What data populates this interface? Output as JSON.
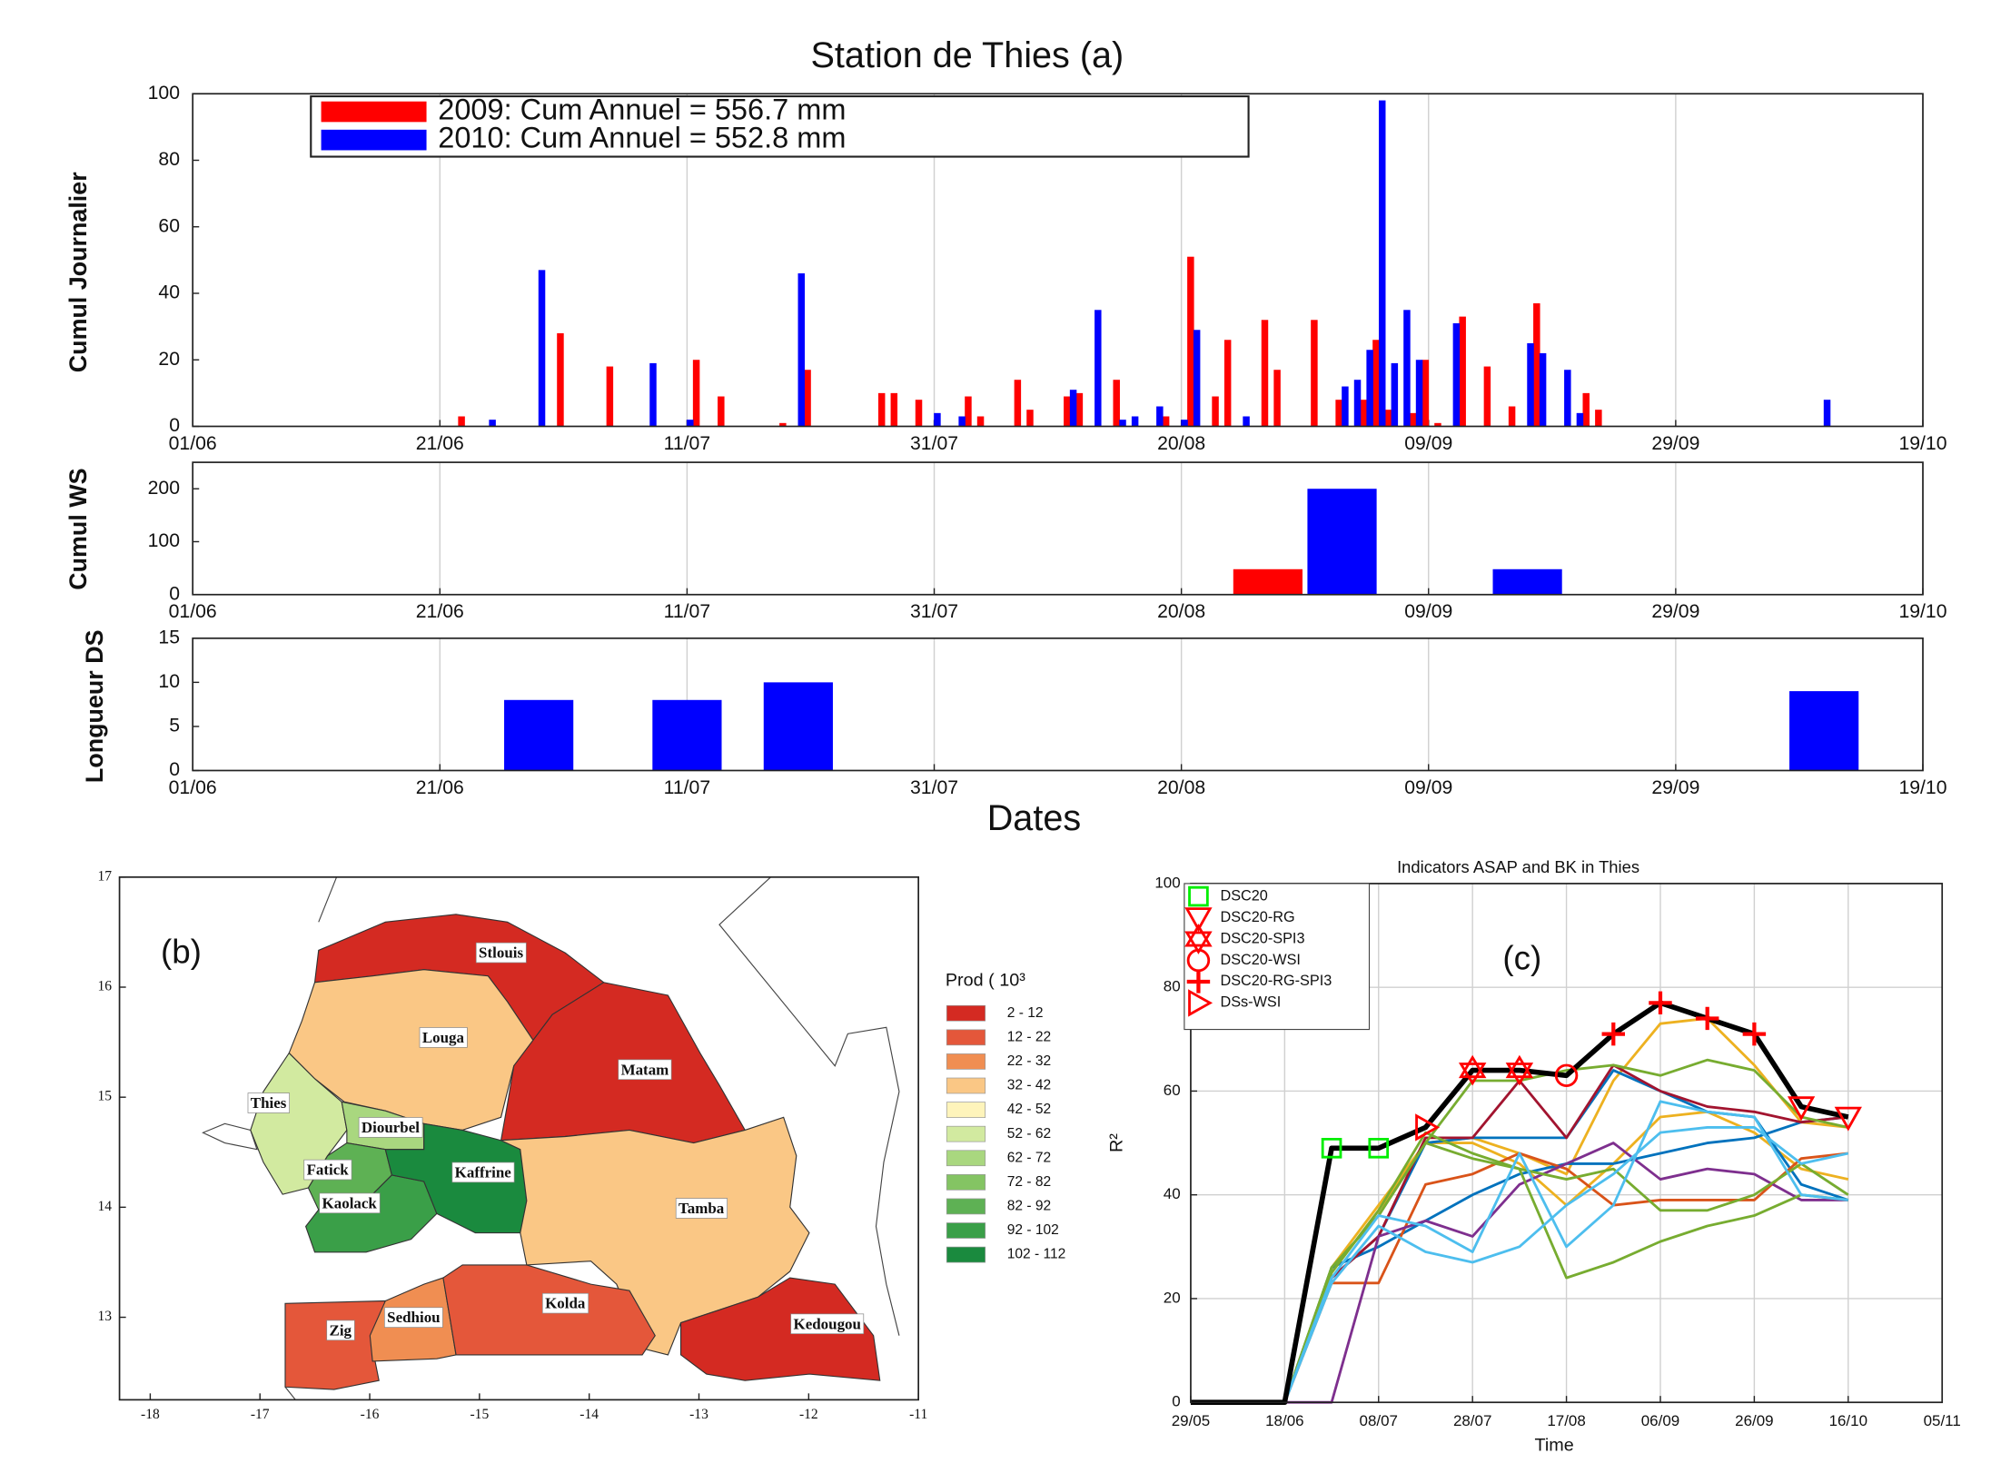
{
  "chart_data": [
    {
      "type": "bar",
      "title": "Station de Thies (a)",
      "ylabel": "Cumul Journalier",
      "xlim": [
        152,
        292
      ],
      "xticks": [
        {
          "value": 152,
          "label": "01/06"
        },
        {
          "value": 172,
          "label": "21/06"
        },
        {
          "value": 192,
          "label": "11/07"
        },
        {
          "value": 212,
          "label": "31/07"
        },
        {
          "value": 232,
          "label": "20/08"
        },
        {
          "value": 252,
          "label": "09/09"
        },
        {
          "value": 272,
          "label": "29/09"
        },
        {
          "value": 292,
          "label": "19/10"
        }
      ],
      "ylim": [
        0,
        100
      ],
      "yticks": [
        0,
        20,
        40,
        60,
        80,
        100
      ],
      "xgrid": true,
      "legend": "upper left",
      "series": [
        {
          "name": "2009: Cum Annuel = 556.7 mm",
          "color": "#ff0000",
          "x": [
            174,
            182,
            186,
            193,
            195,
            200,
            202,
            208,
            209,
            211,
            215,
            216,
            219,
            220,
            223,
            224,
            227,
            231,
            233,
            235,
            236,
            239,
            240,
            243,
            245,
            247,
            248,
            249,
            251,
            252,
            253,
            255,
            257,
            259,
            261,
            265,
            266
          ],
          "values": [
            3,
            28,
            18,
            20,
            9,
            1,
            17,
            10,
            10,
            8,
            9,
            3,
            14,
            5,
            9,
            10,
            14,
            3,
            51,
            9,
            26,
            32,
            17,
            32,
            8,
            8,
            26,
            5,
            4,
            20,
            1,
            33,
            18,
            6,
            37,
            10,
            5
          ]
        },
        {
          "name": "2010: Cum Annuel = 552.8 mm",
          "color": "#0000ff",
          "x": [
            176,
            180,
            189,
            192,
            201,
            212,
            214,
            223,
            225,
            227,
            228,
            230,
            232,
            233,
            237,
            245,
            246,
            247,
            248,
            249,
            250,
            251,
            254,
            260,
            261,
            263,
            264,
            284
          ],
          "values": [
            2,
            47,
            19,
            2,
            46,
            4,
            3,
            11,
            35,
            2,
            3,
            6,
            2,
            29,
            3,
            12,
            14,
            23,
            98,
            19,
            35,
            20,
            31,
            25,
            22,
            17,
            4,
            8
          ]
        }
      ]
    },
    {
      "type": "bar",
      "ylabel": "Cumul WS",
      "xlim": [
        152,
        292
      ],
      "xticks": [
        {
          "value": 152,
          "label": "01/06"
        },
        {
          "value": 172,
          "label": "21/06"
        },
        {
          "value": 192,
          "label": "11/07"
        },
        {
          "value": 212,
          "label": "31/07"
        },
        {
          "value": 232,
          "label": "20/08"
        },
        {
          "value": 252,
          "label": "09/09"
        },
        {
          "value": 272,
          "label": "29/09"
        },
        {
          "value": 292,
          "label": "19/10"
        }
      ],
      "ylim": [
        0,
        250
      ],
      "yticks": [
        0,
        100,
        200
      ],
      "xgrid": true,
      "series": [
        {
          "color": "#ff0000",
          "x": [
            239
          ],
          "values": [
            48
          ]
        },
        {
          "color": "#0000ff",
          "x": [
            245,
            260
          ],
          "values": [
            200,
            48
          ]
        }
      ]
    },
    {
      "type": "bar",
      "ylabel": "Longueur DS",
      "xlabel": "Dates",
      "xlim": [
        152,
        292
      ],
      "xticks": [
        {
          "value": 152,
          "label": "01/06"
        },
        {
          "value": 172,
          "label": "21/06"
        },
        {
          "value": 192,
          "label": "11/07"
        },
        {
          "value": 212,
          "label": "31/07"
        },
        {
          "value": 232,
          "label": "20/08"
        },
        {
          "value": 252,
          "label": "09/09"
        },
        {
          "value": 272,
          "label": "29/09"
        },
        {
          "value": 292,
          "label": "19/10"
        }
      ],
      "ylim": [
        0,
        15
      ],
      "yticks": [
        0,
        5,
        10,
        15
      ],
      "xgrid": true,
      "series": [
        {
          "color": "#0000ff",
          "x": [
            180,
            192,
            201,
            284
          ],
          "values": [
            8,
            8,
            10,
            9
          ]
        }
      ]
    },
    {
      "type": "map",
      "annotation": "(b)",
      "xlim": [
        -18.28,
        -11
      ],
      "xticks": [
        -18,
        -17,
        -16,
        -15,
        -14,
        -13,
        -12,
        -11
      ],
      "ylim": [
        12.25,
        17
      ],
      "yticks": [
        13,
        14,
        15,
        16,
        17
      ],
      "regions": [
        {
          "name": "Stlouis",
          "color": "#d42a22"
        },
        {
          "name": "Louga",
          "color": "#fac785"
        },
        {
          "name": "Matam",
          "color": "#d42a22"
        },
        {
          "name": "Thies",
          "color": "#d2eaa0"
        },
        {
          "name": "Diourbel",
          "color": "#a9d77f"
        },
        {
          "name": "Fatick",
          "color": "#5eb154"
        },
        {
          "name": "Kaolack",
          "color": "#3a9f48"
        },
        {
          "name": "Kaffrine",
          "color": "#1a8a3e"
        },
        {
          "name": "Tamba",
          "color": "#fac785"
        },
        {
          "name": "Zig",
          "color": "#e4573a"
        },
        {
          "name": "Sedhiou",
          "color": "#f08e52"
        },
        {
          "name": "Kolda",
          "color": "#e4573a"
        },
        {
          "name": "Kedougou",
          "color": "#d42a22"
        }
      ],
      "legend_title": "Prod ( 10³",
      "legend_items": [
        {
          "label": "2 - 12",
          "color": "#d42a22"
        },
        {
          "label": "12 - 22",
          "color": "#e4573a"
        },
        {
          "label": "22 - 32",
          "color": "#f08e52"
        },
        {
          "label": "32 - 42",
          "color": "#fac785"
        },
        {
          "label": "42 - 52",
          "color": "#fef4bb"
        },
        {
          "label": "52 - 62",
          "color": "#d2eaa0"
        },
        {
          "label": "62 - 72",
          "color": "#a9d77f"
        },
        {
          "label": "72 - 82",
          "color": "#84c463"
        },
        {
          "label": "82 - 92",
          "color": "#5eb154"
        },
        {
          "label": "92 - 102",
          "color": "#3a9f48"
        },
        {
          "label": "102 - 112",
          "color": "#1a8a3e"
        }
      ]
    },
    {
      "type": "line",
      "title": "Indicators ASAP and BK in Thies",
      "xlabel": "Time",
      "ylabel": "R²",
      "annotation": "(c)",
      "xlim": [
        149,
        309
      ],
      "xticks": [
        {
          "value": 149,
          "label": "29/05"
        },
        {
          "value": 169,
          "label": "18/06"
        },
        {
          "value": 189,
          "label": "08/07"
        },
        {
          "value": 209,
          "label": "28/07"
        },
        {
          "value": 229,
          "label": "17/08"
        },
        {
          "value": 249,
          "label": "06/09"
        },
        {
          "value": 269,
          "label": "26/09"
        },
        {
          "value": 289,
          "label": "16/10"
        },
        {
          "value": 309,
          "label": "05/11"
        }
      ],
      "ylim": [
        0,
        100
      ],
      "yticks": [
        0,
        20,
        40,
        60,
        80,
        100
      ],
      "xgrid": true,
      "ygrid": true,
      "legend": "upper left",
      "x": [
        149,
        159,
        169,
        179,
        189,
        199,
        209,
        219,
        229,
        239,
        249,
        259,
        269,
        279,
        289
      ],
      "series": [
        {
          "color": "#edb120",
          "linewidth": 2,
          "values": [
            0,
            0,
            0,
            26,
            38,
            50,
            51,
            48,
            44,
            62,
            73,
            74,
            65,
            54,
            53
          ]
        },
        {
          "color": "#edb120",
          "linewidth": 2,
          "values": [
            0,
            0,
            0,
            25,
            37,
            50,
            50,
            46,
            38,
            46,
            55,
            56,
            52,
            45,
            43
          ]
        },
        {
          "color": "#0072bd",
          "linewidth": 2,
          "values": [
            0,
            0,
            0,
            24,
            32,
            50,
            51,
            51,
            51,
            64,
            60,
            56,
            55,
            42,
            39
          ]
        },
        {
          "color": "#0072bd",
          "linewidth": 2,
          "values": [
            0,
            0,
            0,
            26,
            30,
            35,
            40,
            44,
            46,
            46,
            48,
            50,
            51,
            54,
            55
          ]
        },
        {
          "color": "#d95319",
          "linewidth": 2,
          "values": [
            0,
            0,
            0,
            23,
            23,
            42,
            44,
            48,
            45,
            38,
            39,
            39,
            39,
            47,
            48
          ]
        },
        {
          "color": "#a2142f",
          "linewidth": 2,
          "values": [
            0,
            0,
            0,
            24,
            32,
            51,
            51,
            62,
            51,
            65,
            60,
            57,
            56,
            54,
            55
          ]
        },
        {
          "color": "#7e2f8e",
          "linewidth": 2,
          "values": [
            0,
            0,
            0,
            0,
            32,
            35,
            32,
            42,
            46,
            50,
            43,
            45,
            44,
            39,
            39
          ]
        },
        {
          "color": "#77ac30",
          "linewidth": 2,
          "values": [
            0,
            0,
            0,
            25,
            37,
            52,
            48,
            45,
            24,
            27,
            31,
            34,
            36,
            40,
            39
          ]
        },
        {
          "color": "#77ac30",
          "linewidth": 2,
          "values": [
            0,
            0,
            0,
            26,
            36,
            50,
            62,
            62,
            64,
            65,
            63,
            66,
            64,
            55,
            53
          ]
        },
        {
          "color": "#77ac30",
          "linewidth": 2,
          "values": [
            0,
            0,
            0,
            26,
            36,
            50,
            47,
            45,
            43,
            45,
            37,
            37,
            40,
            46,
            40
          ]
        },
        {
          "color": "#4dbeee",
          "linewidth": 2,
          "values": [
            0,
            0,
            0,
            23,
            34,
            29,
            27,
            30,
            38,
            44,
            52,
            53,
            53,
            46,
            48
          ]
        },
        {
          "color": "#4dbeee",
          "linewidth": 2,
          "values": [
            0,
            0,
            0,
            24,
            36,
            34,
            29,
            48,
            30,
            38,
            58,
            56,
            55,
            40,
            39
          ]
        },
        {
          "color": "#000000",
          "linewidth": 4,
          "values": [
            0,
            0,
            0,
            49,
            49,
            53,
            64,
            64,
            63,
            71,
            77,
            74,
            71,
            57,
            55
          ]
        },
        {
          "name": "DSC20",
          "color": "#00ee00",
          "marker": "square",
          "x": [
            179,
            189
          ],
          "values": [
            49,
            49
          ]
        },
        {
          "name": "DSC20-RG",
          "color": "#ff0000",
          "marker": "triangle-down",
          "x": [
            279,
            289
          ],
          "values": [
            57,
            55
          ]
        },
        {
          "name": "DSC20-SPI3",
          "color": "#ff0000",
          "marker": "hexagram",
          "x": [
            209,
            219
          ],
          "values": [
            64,
            64
          ]
        },
        {
          "name": "DSC20-WSI",
          "color": "#ff0000",
          "marker": "circle",
          "x": [
            229
          ],
          "values": [
            63
          ]
        },
        {
          "name": "DSC20-RG-SPI3",
          "color": "#ff0000",
          "marker": "plus",
          "x": [
            239,
            249,
            259,
            269
          ],
          "values": [
            71,
            77,
            74,
            71
          ]
        },
        {
          "name": "DSs-WSI",
          "color": "#ff0000",
          "marker": "triangle-right",
          "x": [
            199
          ],
          "values": [
            53
          ]
        }
      ]
    }
  ]
}
